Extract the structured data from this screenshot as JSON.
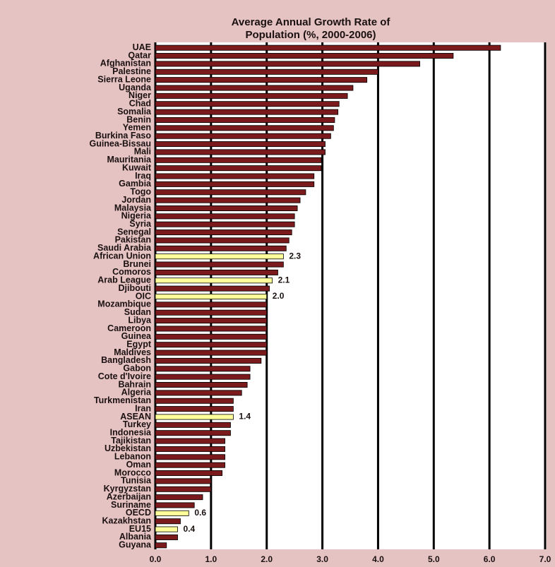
{
  "chart_data": {
    "type": "bar",
    "orientation": "horizontal",
    "title": [
      "Average Annual Growth Rate of",
      "Population (%, 2000-2006)"
    ],
    "categories": [
      "UAE",
      "Qatar",
      "Afghanistan",
      "Palestine",
      "Sierra Leone",
      "Uganda",
      "Niger",
      "Chad",
      "Somalia",
      "Benin",
      "Yemen",
      "Burkina Faso",
      "Guinea-Bissau",
      "Mali",
      "Mauritania",
      "Kuwait",
      "Iraq",
      "Gambia",
      "Togo",
      "Jordan",
      "Malaysia",
      "Nigeria",
      "Syria",
      "Senegal",
      "Pakistan",
      "Saudi Arabia",
      "African Union",
      "Brunei",
      "Comoros",
      "Arab League",
      "Djibouti",
      "OIC",
      "Mozambique",
      "Sudan",
      "Libya",
      "Cameroon",
      "Guinea",
      "Egypt",
      "Maldives",
      "Bangladesh",
      "Gabon",
      "Cote d'Ivoire",
      "Bahrain",
      "Algeria",
      "Turkmenistan",
      "Iran",
      "ASEAN",
      "Turkey",
      "Indonesia",
      "Tajikistan",
      "Uzbekistan",
      "Lebanon",
      "Oman",
      "Morocco",
      "Tunisia",
      "Kyrgyzstan",
      "Azerbaijan",
      "Suriname",
      "OECD",
      "Kazakhstan",
      "EU15",
      "Albania",
      "Guyana"
    ],
    "values": [
      6.2,
      5.35,
      4.75,
      4.0,
      3.8,
      3.55,
      3.45,
      3.3,
      3.28,
      3.22,
      3.2,
      3.15,
      3.05,
      3.05,
      2.98,
      2.98,
      2.85,
      2.85,
      2.7,
      2.6,
      2.55,
      2.5,
      2.5,
      2.45,
      2.4,
      2.35,
      2.3,
      2.3,
      2.2,
      2.1,
      2.05,
      2.0,
      2.0,
      2.0,
      2.0,
      2.0,
      2.0,
      2.0,
      2.0,
      1.9,
      1.7,
      1.7,
      1.65,
      1.55,
      1.4,
      1.4,
      1.4,
      1.35,
      1.35,
      1.25,
      1.25,
      1.25,
      1.25,
      1.2,
      1.0,
      1.0,
      0.85,
      0.7,
      0.6,
      0.45,
      0.4,
      0.4,
      0.2
    ],
    "value_labels": [
      null,
      null,
      null,
      null,
      null,
      null,
      null,
      null,
      null,
      null,
      null,
      null,
      null,
      null,
      null,
      null,
      null,
      null,
      null,
      null,
      null,
      null,
      null,
      null,
      null,
      null,
      "2.3",
      null,
      null,
      "2.1",
      null,
      "2.0",
      null,
      null,
      null,
      null,
      null,
      null,
      null,
      null,
      null,
      null,
      null,
      null,
      null,
      null,
      "1.4",
      null,
      null,
      null,
      null,
      null,
      null,
      null,
      null,
      null,
      null,
      null,
      "0.6",
      null,
      "0.4",
      null,
      null
    ],
    "colors": [
      "#7a1a1c",
      "#7a1a1c",
      "#7a1a1c",
      "#7a1a1c",
      "#7a1a1c",
      "#7a1a1c",
      "#7a1a1c",
      "#7a1a1c",
      "#7a1a1c",
      "#7a1a1c",
      "#7a1a1c",
      "#7a1a1c",
      "#7a1a1c",
      "#7a1a1c",
      "#7a1a1c",
      "#7a1a1c",
      "#7a1a1c",
      "#7a1a1c",
      "#7a1a1c",
      "#7a1a1c",
      "#7a1a1c",
      "#7a1a1c",
      "#7a1a1c",
      "#7a1a1c",
      "#7a1a1c",
      "#7a1a1c",
      "#ffff99",
      "#7a1a1c",
      "#7a1a1c",
      "#ffff99",
      "#7a1a1c",
      "#ffff99",
      "#7a1a1c",
      "#7a1a1c",
      "#7a1a1c",
      "#7a1a1c",
      "#7a1a1c",
      "#7a1a1c",
      "#7a1a1c",
      "#7a1a1c",
      "#7a1a1c",
      "#7a1a1c",
      "#7a1a1c",
      "#7a1a1c",
      "#7a1a1c",
      "#7a1a1c",
      "#ffff99",
      "#7a1a1c",
      "#7a1a1c",
      "#7a1a1c",
      "#7a1a1c",
      "#7a1a1c",
      "#7a1a1c",
      "#7a1a1c",
      "#7a1a1c",
      "#7a1a1c",
      "#7a1a1c",
      "#7a1a1c",
      "#ffff99",
      "#7a1a1c",
      "#ffff99",
      "#7a1a1c",
      "#7a1a1c"
    ],
    "xlim": [
      0,
      7
    ],
    "xticks": [
      {
        "value": 0,
        "label": "0.0"
      },
      {
        "value": 1,
        "label": "1.0"
      },
      {
        "value": 2,
        "label": "2.0"
      },
      {
        "value": 3,
        "label": "3.0"
      },
      {
        "value": 4,
        "label": "4.0"
      },
      {
        "value": 5,
        "label": "5.0"
      },
      {
        "value": 6,
        "label": "6.0"
      },
      {
        "value": 7,
        "label": "7.0"
      }
    ],
    "grid": true
  }
}
